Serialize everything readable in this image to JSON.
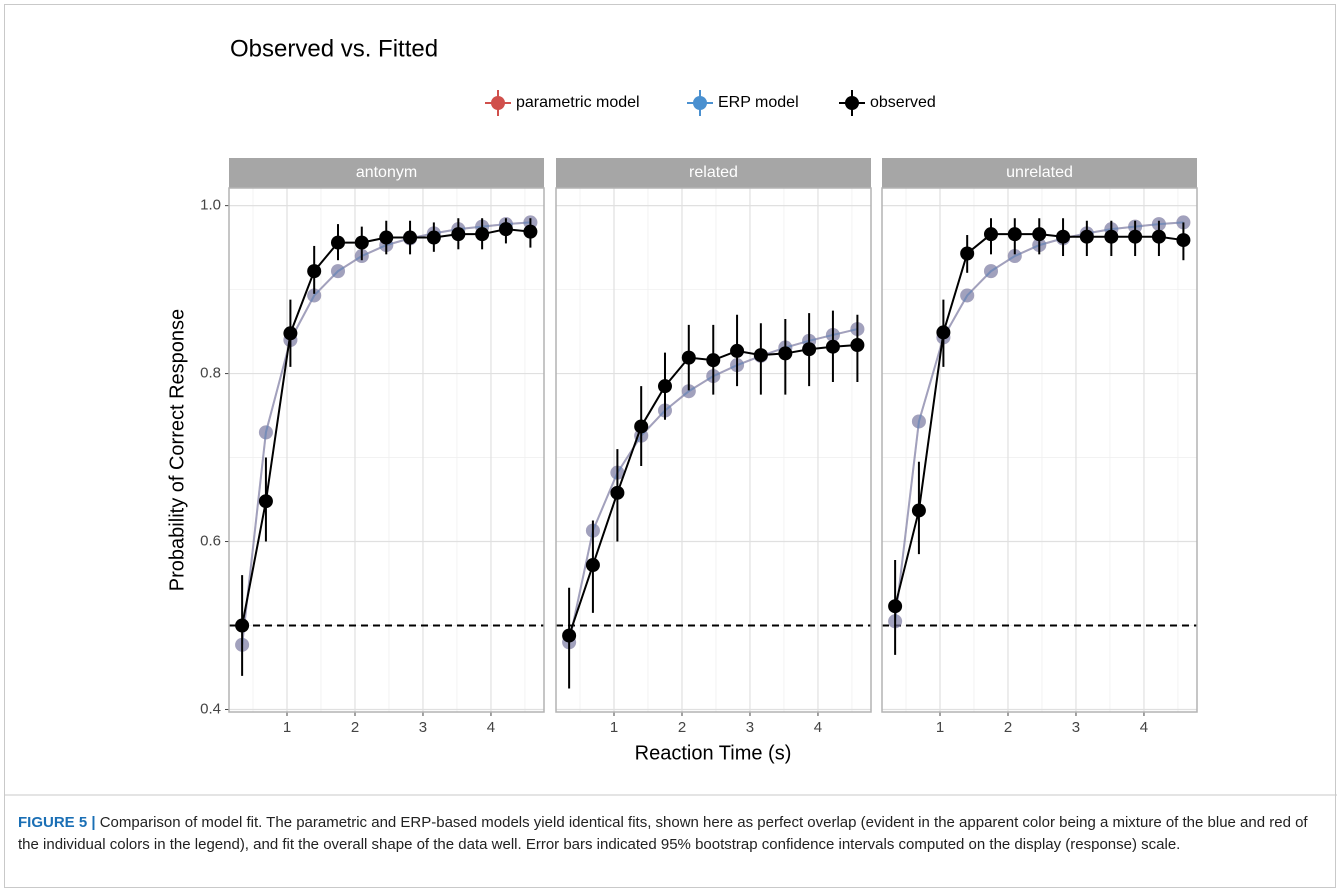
{
  "chart_data": {
    "type": "line",
    "title": "Observed vs. Fitted",
    "x_label": "Reaction Time (s)",
    "y_label": "Probability of Correct Response",
    "series_styles": [
      {
        "name": "parametric model",
        "color": "#d0504c"
      },
      {
        "name": "ERP model",
        "color": "#4a90d0"
      },
      {
        "name": "observed",
        "color": "#000000"
      }
    ],
    "x": [
      0.34,
      0.69,
      1.05,
      1.4,
      1.75,
      2.1,
      2.46,
      2.81,
      3.16,
      3.52,
      3.87,
      4.22,
      4.58
    ],
    "xlim": [
      0.147,
      4.78
    ],
    "xticks": [
      1,
      2,
      3,
      4
    ],
    "ylim": [
      0.397,
      1.021
    ],
    "yticks": [
      {
        "value": 0.4,
        "label": "0.4"
      },
      0.6,
      0.8,
      {
        "value": 1,
        "label": "1.0"
      }
    ],
    "grid": true,
    "minor_grid": true,
    "hline": 0.5,
    "facets": [
      {
        "label": "antonym",
        "series": [
          {
            "values": [
              0.477,
              0.73,
              0.84,
              0.893,
              0.922,
              0.94,
              0.953,
              0.961,
              0.967,
              0.972,
              0.975,
              0.978,
              0.98
            ]
          },
          {
            "values": [
              0.477,
              0.73,
              0.84,
              0.893,
              0.922,
              0.94,
              0.953,
              0.961,
              0.967,
              0.972,
              0.975,
              0.978,
              0.98
            ]
          },
          {
            "values": [
              0.5,
              0.648,
              0.848,
              0.922,
              0.956,
              0.956,
              0.962,
              0.962,
              0.962,
              0.966,
              0.966,
              0.972,
              0.969
            ],
            "ci_low": [
              0.44,
              0.6,
              0.808,
              0.895,
              0.935,
              0.935,
              0.942,
              0.942,
              0.945,
              0.948,
              0.948,
              0.955,
              0.95
            ],
            "ci_high": [
              0.56,
              0.7,
              0.888,
              0.952,
              0.978,
              0.975,
              0.982,
              0.982,
              0.98,
              0.985,
              0.985,
              0.985,
              0.985
            ]
          }
        ]
      },
      {
        "label": "related",
        "series": [
          {
            "values": [
              0.48,
              0.613,
              0.682,
              0.726,
              0.756,
              0.779,
              0.797,
              0.81,
              0.821,
              0.831,
              0.839,
              0.846,
              0.853
            ]
          },
          {
            "values": [
              0.48,
              0.613,
              0.682,
              0.726,
              0.756,
              0.779,
              0.797,
              0.81,
              0.821,
              0.831,
              0.839,
              0.846,
              0.853
            ]
          },
          {
            "values": [
              0.488,
              0.572,
              0.658,
              0.737,
              0.785,
              0.819,
              0.816,
              0.827,
              0.822,
              0.824,
              0.829,
              0.832,
              0.834
            ],
            "ci_low": [
              0.425,
              0.515,
              0.6,
              0.69,
              0.745,
              0.78,
              0.775,
              0.785,
              0.775,
              0.775,
              0.785,
              0.79,
              0.79
            ],
            "ci_high": [
              0.545,
              0.625,
              0.71,
              0.785,
              0.825,
              0.858,
              0.858,
              0.87,
              0.86,
              0.865,
              0.872,
              0.875,
              0.87
            ]
          }
        ]
      },
      {
        "label": "unrelated",
        "series": [
          {
            "values": [
              0.505,
              0.743,
              0.843,
              0.893,
              0.922,
              0.94,
              0.953,
              0.961,
              0.967,
              0.972,
              0.975,
              0.978,
              0.98
            ]
          },
          {
            "values": [
              0.505,
              0.743,
              0.843,
              0.893,
              0.922,
              0.94,
              0.953,
              0.961,
              0.967,
              0.972,
              0.975,
              0.978,
              0.98
            ]
          },
          {
            "values": [
              0.523,
              0.637,
              0.849,
              0.943,
              0.966,
              0.966,
              0.966,
              0.963,
              0.963,
              0.963,
              0.963,
              0.963,
              0.959
            ],
            "ci_low": [
              0.465,
              0.585,
              0.808,
              0.92,
              0.942,
              0.942,
              0.942,
              0.94,
              0.94,
              0.94,
              0.94,
              0.94,
              0.935
            ],
            "ci_high": [
              0.578,
              0.695,
              0.888,
              0.965,
              0.985,
              0.985,
              0.985,
              0.985,
              0.982,
              0.982,
              0.982,
              0.982,
              0.98
            ]
          }
        ]
      }
    ]
  },
  "caption": {
    "label": "FIGURE 5 |",
    "text": "Comparison of model fit. The parametric and ERP-based models yield identical fits, shown here as perfect overlap (evident in the apparent color being a mixture of the blue and red of the individual colors in the legend), and fit the overall shape of the data well. Error bars indicated 95% bootstrap confidence intervals computed on the display (response) scale."
  }
}
